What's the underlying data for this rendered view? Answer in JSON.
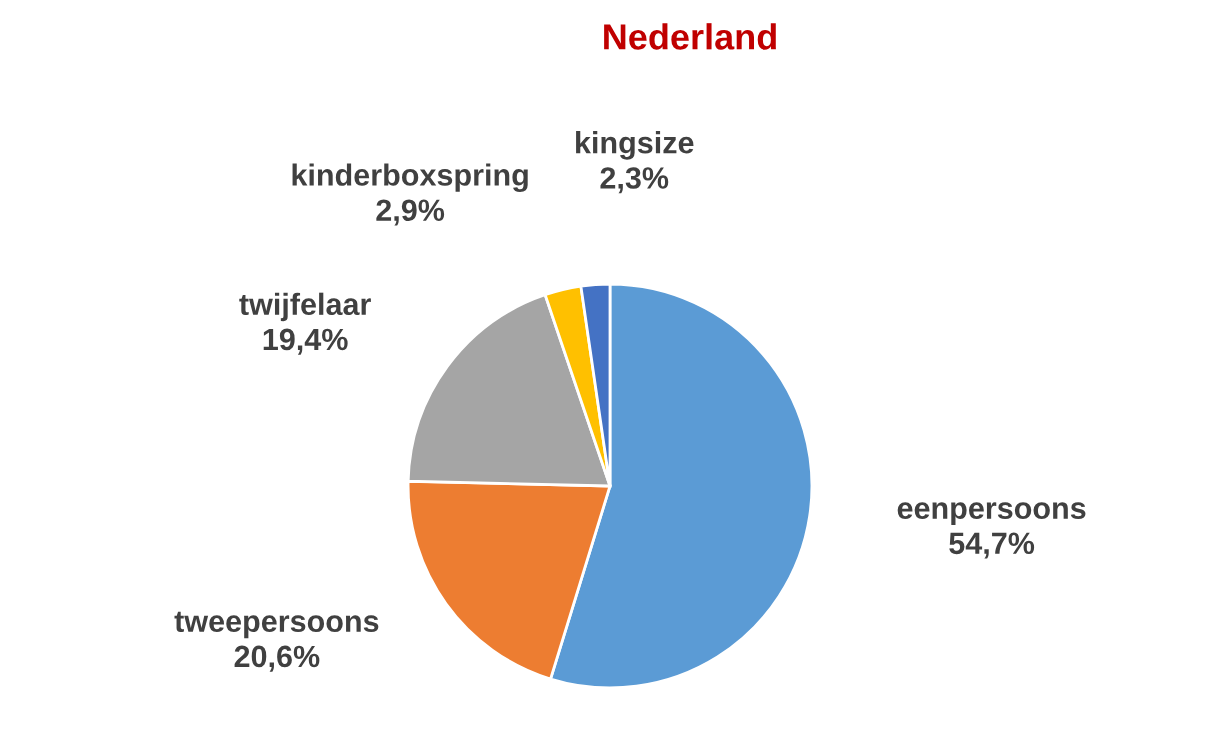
{
  "chart_data": {
    "type": "pie",
    "title": "Nederland",
    "categories": [
      "eenpersoons",
      "tweepersoons",
      "twijfelaar",
      "kinderboxspring",
      "kingsize"
    ],
    "values": [
      54.7,
      20.6,
      19.4,
      2.9,
      2.3
    ],
    "value_labels": [
      "54,7%",
      "20,6%",
      "19,4%",
      "2,9%",
      "2,3%"
    ],
    "colors": [
      "#5b9bd5",
      "#ed7d31",
      "#a5a5a5",
      "#ffc000",
      "#4472c4"
    ],
    "legend": false
  }
}
